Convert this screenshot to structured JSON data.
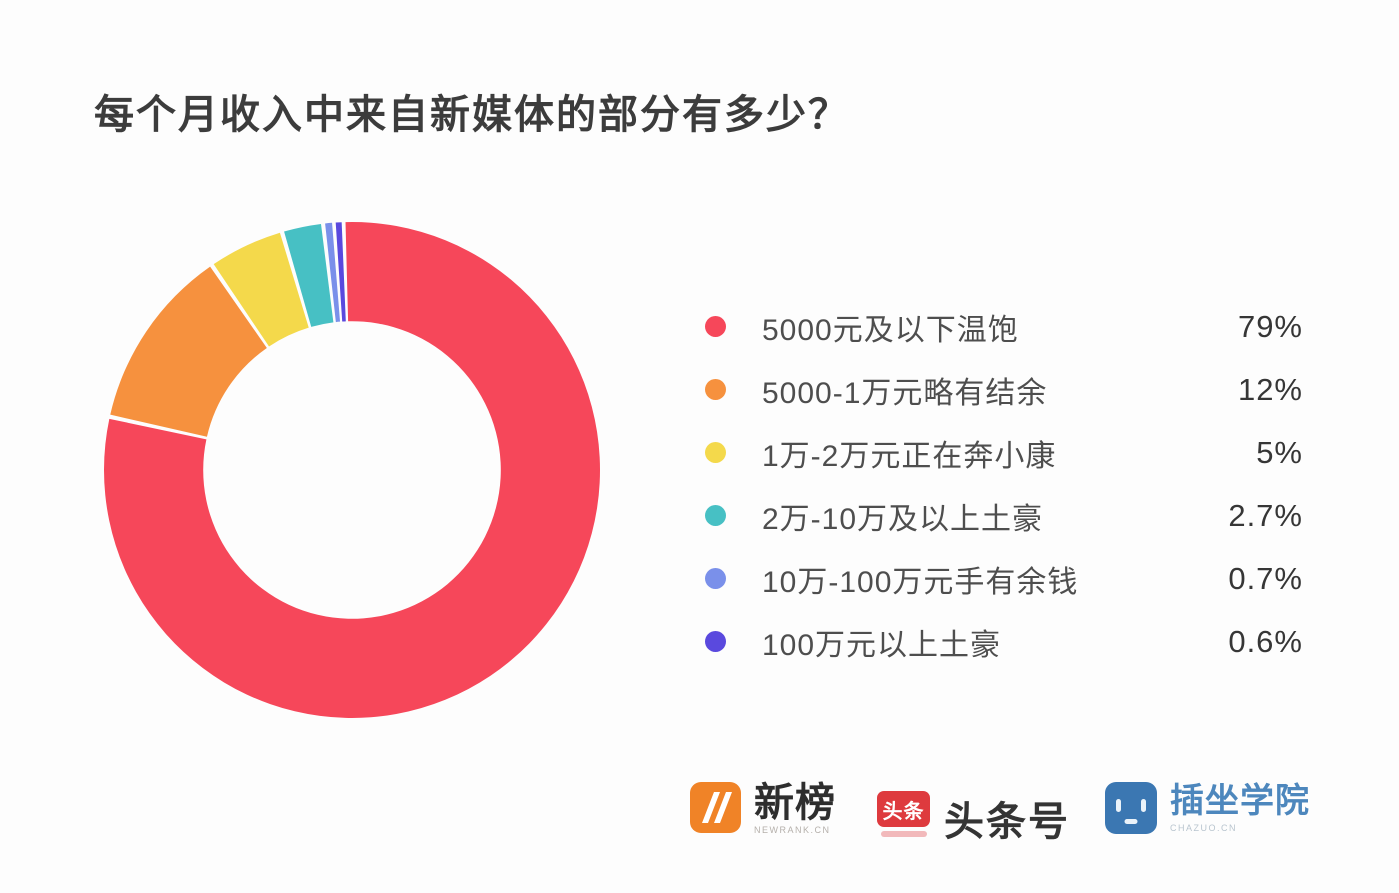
{
  "title": "每个月收入中来自新媒体的部分有多少？",
  "chart_data": {
    "type": "pie",
    "subtype": "donut",
    "title": "每个月收入中来自新媒体的部分有多少？",
    "direction": "clockwise",
    "start_angle_deg": -2,
    "inner_radius_ratio": 0.6,
    "legend_position": "right",
    "gap_color": "#ffffff",
    "series": [
      {
        "label": "5000元及以下温饱",
        "value": 79,
        "display": "79%",
        "color": "#f6475a"
      },
      {
        "label": "5000-1万元略有结余",
        "value": 12,
        "display": "12%",
        "color": "#f6913e"
      },
      {
        "label": "1万-2万元正在奔小康",
        "value": 5,
        "display": "5%",
        "color": "#f4d94b"
      },
      {
        "label": "2万-10万及以上土豪",
        "value": 2.7,
        "display": "2.7%",
        "color": "#47c0c4"
      },
      {
        "label": "10万-100万元手有余钱",
        "value": 0.7,
        "display": "0.7%",
        "color": "#7a90ea"
      },
      {
        "label": "100万元以上土豪",
        "value": 0.6,
        "display": "0.6%",
        "color": "#5a49de"
      }
    ]
  },
  "footer": {
    "newrank": {
      "name": "新榜",
      "caption": "NEWRANK.CN",
      "brand_color": "#f08327"
    },
    "toutiao": {
      "icon_text": "头条",
      "name": "头条号",
      "brand_color": "#de3a3e"
    },
    "chazuo": {
      "name": "插坐学院",
      "caption": "CHAZUO.CN",
      "brand_color": "#3b77b2"
    }
  }
}
